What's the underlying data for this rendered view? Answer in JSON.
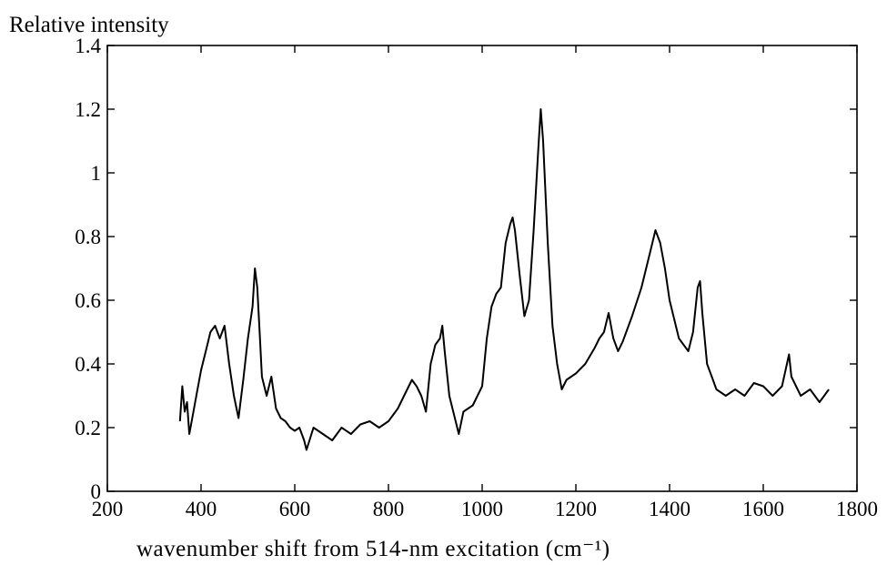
{
  "chart_data": {
    "type": "line",
    "title": "",
    "ylabel": "Relative intensity",
    "xlabel": "wavenumber shift from 514-nm excitation (cm⁻¹)",
    "xlim": [
      200,
      1800
    ],
    "ylim": [
      0,
      1.4
    ],
    "xticks": [
      200,
      400,
      600,
      800,
      1000,
      1200,
      1400,
      1600,
      1800
    ],
    "yticks": [
      0,
      0.2,
      0.4,
      0.6,
      0.8,
      1,
      1.2,
      1.4
    ],
    "xtick_labels": [
      "200",
      "400",
      "600",
      "800",
      "1000",
      "1200",
      "1400",
      "1600",
      "1800"
    ],
    "ytick_labels": [
      "0",
      "0.2",
      "0.4",
      "0.6",
      "0.8",
      "1",
      "1.2",
      "1.4"
    ],
    "grid": false,
    "legend": "none",
    "line_color": "#000000",
    "series": [
      {
        "x": [
          355,
          360,
          365,
          370,
          375,
          380,
          390,
          400,
          410,
          420,
          430,
          440,
          450,
          460,
          470,
          480,
          490,
          500,
          510,
          515,
          520,
          525,
          530,
          540,
          550,
          560,
          570,
          580,
          590,
          600,
          610,
          620,
          625,
          640,
          660,
          680,
          700,
          720,
          740,
          760,
          780,
          800,
          820,
          840,
          850,
          860,
          870,
          880,
          890,
          900,
          910,
          915,
          920,
          930,
          940,
          950,
          960,
          980,
          1000,
          1010,
          1020,
          1030,
          1040,
          1050,
          1060,
          1065,
          1070,
          1080,
          1090,
          1100,
          1110,
          1120,
          1125,
          1130,
          1140,
          1150,
          1160,
          1170,
          1180,
          1200,
          1220,
          1240,
          1250,
          1260,
          1270,
          1280,
          1290,
          1300,
          1320,
          1340,
          1360,
          1370,
          1380,
          1390,
          1400,
          1420,
          1440,
          1450,
          1460,
          1465,
          1470,
          1480,
          1490,
          1500,
          1520,
          1540,
          1560,
          1580,
          1600,
          1620,
          1640,
          1655,
          1660,
          1680,
          1700,
          1720,
          1740
        ],
        "y": [
          0.22,
          0.33,
          0.25,
          0.28,
          0.18,
          0.22,
          0.3,
          0.38,
          0.44,
          0.5,
          0.52,
          0.48,
          0.52,
          0.4,
          0.3,
          0.23,
          0.35,
          0.48,
          0.58,
          0.7,
          0.64,
          0.5,
          0.36,
          0.3,
          0.36,
          0.26,
          0.23,
          0.22,
          0.2,
          0.19,
          0.2,
          0.16,
          0.13,
          0.2,
          0.18,
          0.16,
          0.2,
          0.18,
          0.21,
          0.22,
          0.2,
          0.22,
          0.26,
          0.32,
          0.35,
          0.33,
          0.3,
          0.25,
          0.4,
          0.46,
          0.48,
          0.52,
          0.44,
          0.3,
          0.24,
          0.18,
          0.25,
          0.27,
          0.33,
          0.48,
          0.58,
          0.62,
          0.64,
          0.78,
          0.84,
          0.86,
          0.82,
          0.68,
          0.55,
          0.6,
          0.82,
          1.08,
          1.2,
          1.1,
          0.78,
          0.52,
          0.4,
          0.32,
          0.35,
          0.37,
          0.4,
          0.45,
          0.48,
          0.5,
          0.56,
          0.48,
          0.44,
          0.47,
          0.55,
          0.64,
          0.76,
          0.82,
          0.78,
          0.7,
          0.6,
          0.48,
          0.44,
          0.5,
          0.64,
          0.66,
          0.56,
          0.4,
          0.36,
          0.32,
          0.3,
          0.32,
          0.3,
          0.34,
          0.33,
          0.3,
          0.33,
          0.43,
          0.36,
          0.3,
          0.32,
          0.28,
          0.32
        ]
      }
    ]
  }
}
